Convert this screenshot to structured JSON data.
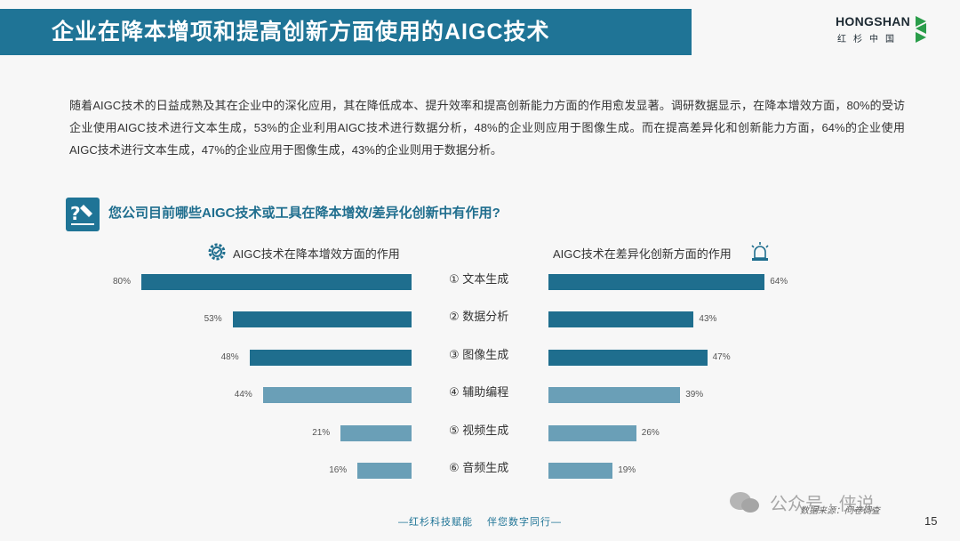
{
  "header": {
    "title": "企业在降本增项和提高创新方面使用的AIGC技术",
    "logo_text": "HONGSHAN",
    "logo_sub": "红杉中国"
  },
  "intro": "随着AIGC技术的日益成熟及其在企业中的深化应用，其在降低成本、提升效率和提高创新能力方面的作用愈发显著。调研数据显示，在降本增效方面，80%的受访企业使用AIGC技术进行文本生成，53%的企业利用AIGC技术进行数据分析，48%的企业则应用于图像生成。而在提高差异化和创新能力方面，64%的企业使用AIGC技术进行文本生成，47%的企业应用于图像生成，43%的企业则用于数据分析。",
  "question": "您公司目前哪些AIGC技术或工具在降本增效/差异化创新中有作用?",
  "chart_data": {
    "type": "bar",
    "categories": [
      "① 文本生成",
      "② 数据分析",
      "③ 图像生成",
      "④ 辅助编程",
      "⑤ 视频生成",
      "⑥ 音频生成"
    ],
    "series": [
      {
        "name": "AIGC技术在降本增效方面的作用",
        "values": [
          80,
          53,
          48,
          44,
          21,
          16
        ],
        "value_labels": [
          "80%",
          "53%",
          "48%",
          "44%",
          "21%",
          "16%"
        ]
      },
      {
        "name": "AIGC技术在差异化创新方面的作用",
        "values": [
          64,
          43,
          47,
          39,
          26,
          19
        ],
        "value_labels": [
          "64%",
          "43%",
          "47%",
          "39%",
          "26%",
          "19%"
        ]
      }
    ],
    "colors": {
      "top3": "#1f6e8e",
      "rest": "#6a9fb7"
    }
  },
  "source": "数据来源：问卷调查",
  "watermark": "公众号 · 侠说",
  "footer": {
    "left": "—红杉科技赋能",
    "right": "伴您数字同行—"
  },
  "page_number": "15"
}
